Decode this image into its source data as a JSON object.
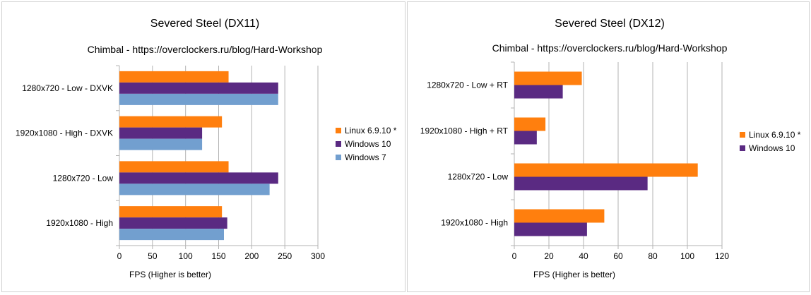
{
  "chart_data": [
    {
      "type": "bar",
      "orientation": "horizontal",
      "title": "Severed Steel (DX11)",
      "subtitle": "Chimbal - https://overclockers.ru/blog/Hard-Workshop",
      "xlabel": "FPS (Higher is better)",
      "ylabel": "",
      "xlim": [
        0,
        300
      ],
      "xticks": [
        0,
        50,
        100,
        150,
        200,
        250,
        300
      ],
      "grid": true,
      "legend_position": "right",
      "categories": [
        "1280x720 - Low - DXVK",
        "1920x1080 - High - DXVK",
        "1280x720 - Low",
        "1920x1080 - High"
      ],
      "series": [
        {
          "name": "Linux 6.9.10 *",
          "color": "#ff7f0e",
          "values": [
            165,
            155,
            165,
            155
          ]
        },
        {
          "name": "Windows 10",
          "color": "#5a2a82",
          "values": [
            240,
            125,
            240,
            163
          ]
        },
        {
          "name": "Windows 7",
          "color": "#729fcf",
          "values": [
            240,
            125,
            227,
            158
          ]
        }
      ]
    },
    {
      "type": "bar",
      "orientation": "horizontal",
      "title": "Severed Steel (DX12)",
      "subtitle": "Chimbal - https://overclockers.ru/blog/Hard-Workshop",
      "xlabel": "FPS (Higher is better)",
      "ylabel": "",
      "xlim": [
        0,
        120
      ],
      "xticks": [
        0,
        20,
        40,
        60,
        80,
        100,
        120
      ],
      "grid": true,
      "legend_position": "right",
      "categories": [
        "1280x720 - Low + RT",
        "1920x1080 - High + RT",
        "1280x720 - Low",
        "1920x1080 - High"
      ],
      "series": [
        {
          "name": "Linux 6.9.10 *",
          "color": "#ff7f0e",
          "values": [
            39,
            18,
            106,
            52
          ]
        },
        {
          "name": "Windows 10",
          "color": "#5a2a82",
          "values": [
            28,
            13,
            77,
            42
          ]
        }
      ]
    }
  ]
}
